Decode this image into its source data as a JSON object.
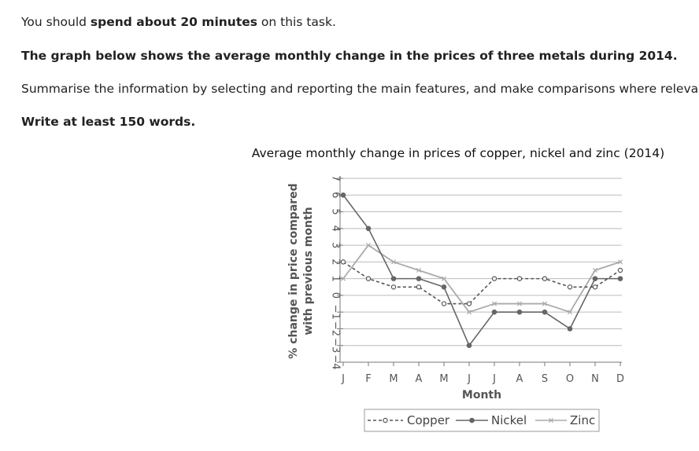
{
  "task": {
    "line1_pre": "You should ",
    "line1_bold": "spend about 20 minutes",
    "line1_post": " on this task.",
    "line2": "The graph below shows the average monthly change in the prices of three metals during 2014.",
    "line3": "Summarise the information by selecting and reporting the main features, and make comparisons where relevant.",
    "line4": "Write at least 150 words."
  },
  "colors": {
    "copper": "#555555",
    "nickel": "#666666",
    "zinc": "#aaaaaa",
    "grid": "#bbbbbb",
    "axis": "#777777"
  },
  "chart_data": {
    "type": "line",
    "title": "Average monthly change in prices of copper, nickel and zinc (2014)",
    "xlabel": "Month",
    "ylabel_line1": "% change in price compared",
    "ylabel_line2": "with previous month",
    "categories": [
      "J",
      "F",
      "M",
      "A",
      "M",
      "J",
      "J",
      "A",
      "S",
      "O",
      "N",
      "D"
    ],
    "y_ticks": [
      "7",
      "6",
      "5",
      "4",
      "3",
      "2",
      "1",
      "0",
      "−1",
      "−2",
      "−3",
      "−4"
    ],
    "ylim": [
      -4,
      7
    ],
    "grid": true,
    "legend_position": "bottom",
    "series": [
      {
        "name": "Copper",
        "key": "copper",
        "style": "dashed-circle",
        "values": [
          2,
          1,
          0.5,
          0.5,
          -0.5,
          -0.5,
          1,
          1,
          1,
          0.5,
          0.5,
          1.5
        ]
      },
      {
        "name": "Nickel",
        "key": "nickel",
        "style": "solid-dot",
        "values": [
          6,
          4,
          1,
          1,
          0.5,
          -3,
          -1,
          -1,
          -1,
          -2,
          1,
          1
        ]
      },
      {
        "name": "Zinc",
        "key": "zinc",
        "style": "solid-cross",
        "values": [
          1,
          3,
          2,
          1.5,
          1,
          -1,
          -0.5,
          -0.5,
          -0.5,
          -1,
          1.5,
          2
        ]
      }
    ]
  }
}
